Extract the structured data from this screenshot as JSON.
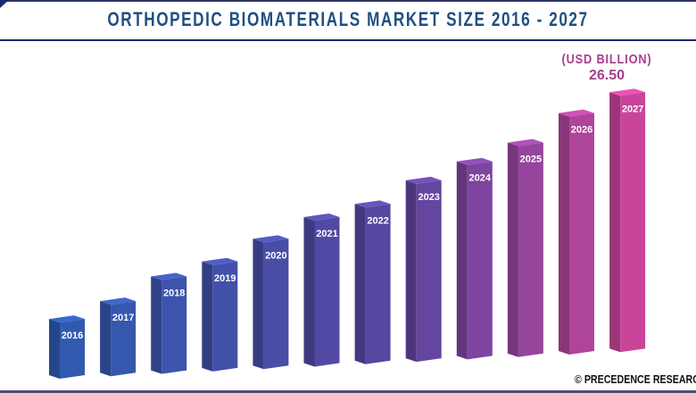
{
  "chart_data": {
    "type": "bar",
    "title": "ORTHOPEDIC BIOMATERIALS MARKET SIZE 2016 - 2027",
    "unit_label": "(USD BILLION)",
    "categories": [
      "2016",
      "2017",
      "2018",
      "2019",
      "2020",
      "2021",
      "2022",
      "2023",
      "2024",
      "2025",
      "2026",
      "2027"
    ],
    "values": [
      5.8,
      7.4,
      9.7,
      11.0,
      13.1,
      15.1,
      16.2,
      18.4,
      20.1,
      21.8,
      24.6,
      26.5
    ],
    "data_labels": {
      "2027": "26.50"
    },
    "style": "3d-column",
    "grid": false,
    "legend": "none",
    "colors": {
      "start": "#2f5ab0",
      "mid": "#5a45a0",
      "end": "#c8459a",
      "title": "#1f4f82",
      "accent": "#a93d8c"
    }
  },
  "footer": {
    "credit": "© PRECEDENCE RESEARCH"
  }
}
